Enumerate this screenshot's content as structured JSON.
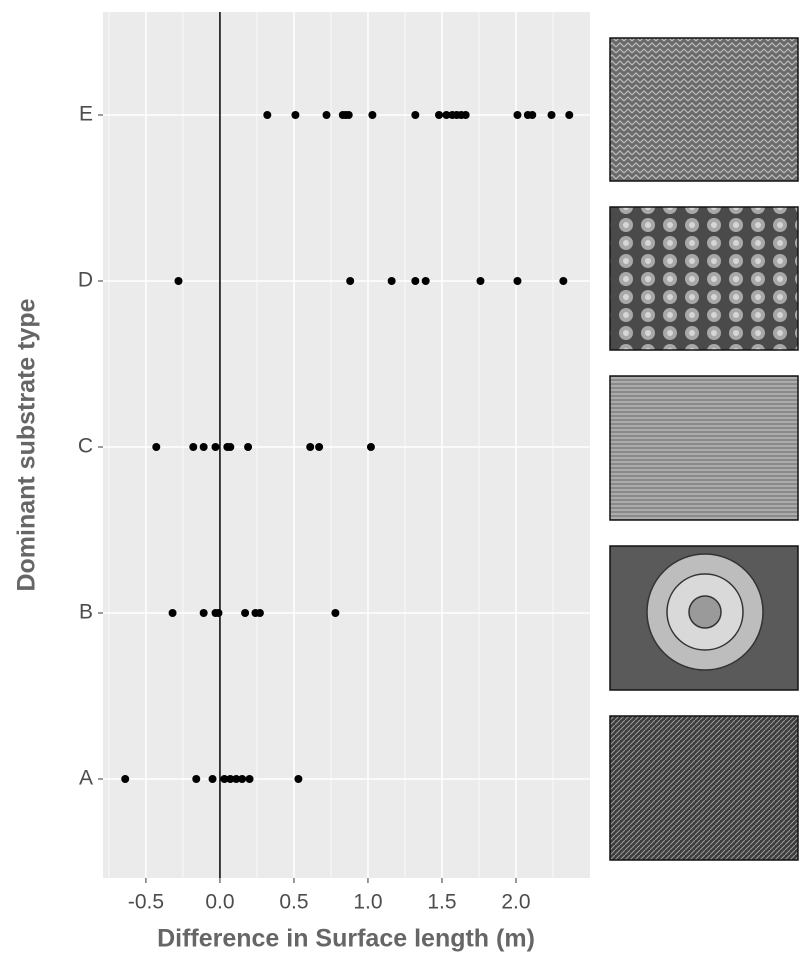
{
  "chart_data": {
    "type": "strip",
    "xlabel": "Difference in Surface length (m)",
    "ylabel": "Dominant substrate type",
    "categories": [
      "A",
      "B",
      "C",
      "D",
      "E"
    ],
    "values": [
      [
        -0.64,
        -0.16,
        -0.05,
        0.03,
        0.07,
        0.11,
        0.15,
        0.2,
        0.53
      ],
      [
        -0.32,
        -0.11,
        -0.03,
        -0.01,
        0.17,
        0.24,
        0.27,
        0.78
      ],
      [
        -0.43,
        -0.18,
        -0.11,
        -0.03,
        0.05,
        0.07,
        0.19,
        0.61,
        0.67,
        1.02
      ],
      [
        -0.28,
        0.88,
        1.16,
        1.32,
        1.39,
        1.76,
        2.01,
        2.32
      ],
      [
        0.32,
        0.51,
        0.72,
        0.83,
        0.85,
        0.87,
        1.03,
        1.32,
        1.48,
        1.53,
        1.57,
        1.6,
        1.63,
        1.66,
        2.01,
        2.08,
        2.11,
        2.24,
        2.36
      ]
    ],
    "color": "#000000",
    "xlim": [
      -0.79,
      2.5
    ],
    "xticks": [
      -0.5,
      {
        "value": 0,
        "label": "0.0"
      },
      0.5,
      {
        "value": 1,
        "label": "1.0"
      },
      1.5,
      {
        "value": 2,
        "label": "2.0"
      }
    ],
    "xminorticks": [
      -0.75,
      -0.25,
      0.25,
      0.75,
      1.25,
      1.75,
      2.25
    ],
    "reference_line": 0,
    "grid": true
  }
}
